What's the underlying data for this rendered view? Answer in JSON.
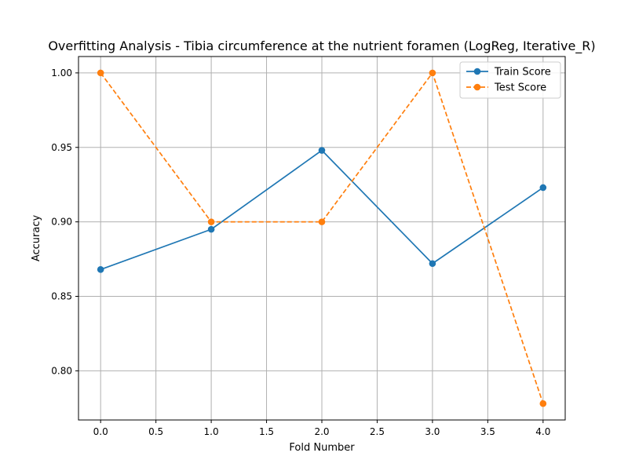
{
  "chart_data": {
    "type": "line",
    "title": "Overfitting Analysis - Tibia circumference at the nutrient foramen (LogReg, Iterative_R)",
    "xlabel": "Fold Number",
    "ylabel": "Accuracy",
    "x": [
      0,
      1,
      2,
      3,
      4
    ],
    "xlim": [
      -0.2,
      4.2
    ],
    "ylim": [
      0.767,
      1.011
    ],
    "xticks": [
      0.0,
      0.5,
      1.0,
      1.5,
      2.0,
      2.5,
      3.0,
      3.5,
      4.0
    ],
    "xtick_labels": [
      "0.0",
      "0.5",
      "1.0",
      "1.5",
      "2.0",
      "2.5",
      "3.0",
      "3.5",
      "4.0"
    ],
    "yticks": [
      0.8,
      0.85,
      0.9,
      0.95,
      1.0
    ],
    "ytick_labels": [
      "0.80",
      "0.85",
      "0.90",
      "0.95",
      "1.00"
    ],
    "grid": true,
    "legend_position": "top-right",
    "series": [
      {
        "name": "Train Score",
        "values": [
          0.868,
          0.895,
          0.948,
          0.872,
          0.923
        ],
        "color": "#1f77b4",
        "style": "solid",
        "marker": "circle"
      },
      {
        "name": "Test Score",
        "values": [
          1.0,
          0.9,
          0.9,
          1.0,
          0.778
        ],
        "color": "#ff7f0e",
        "style": "dashed",
        "marker": "circle"
      }
    ]
  }
}
